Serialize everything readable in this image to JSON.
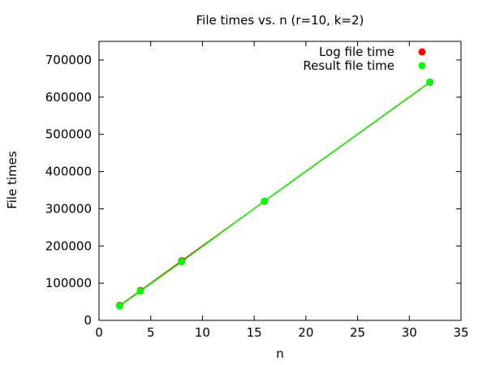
{
  "chart_data": {
    "type": "line",
    "title": "File times vs. n (r=10, k=2)",
    "xlabel": "n",
    "ylabel": "File times",
    "xlim": [
      0,
      35
    ],
    "ylim": [
      0,
      750000
    ],
    "x_ticks": [
      0,
      5,
      10,
      15,
      20,
      25,
      30,
      35
    ],
    "y_ticks": [
      0,
      100000,
      200000,
      300000,
      400000,
      500000,
      600000,
      700000
    ],
    "grid": false,
    "legend_position": "top-right",
    "series": [
      {
        "name": "Log file time",
        "color": "#ff0000",
        "x": [
          2,
          4,
          8,
          16,
          32
        ],
        "y": [
          40000,
          80000,
          160000,
          320000,
          640000
        ]
      },
      {
        "name": "Result file time",
        "color": "#00ff00",
        "x": [
          2,
          4,
          8,
          16,
          32
        ],
        "y": [
          38500,
          78500,
          157500,
          320500,
          640500
        ]
      }
    ]
  }
}
